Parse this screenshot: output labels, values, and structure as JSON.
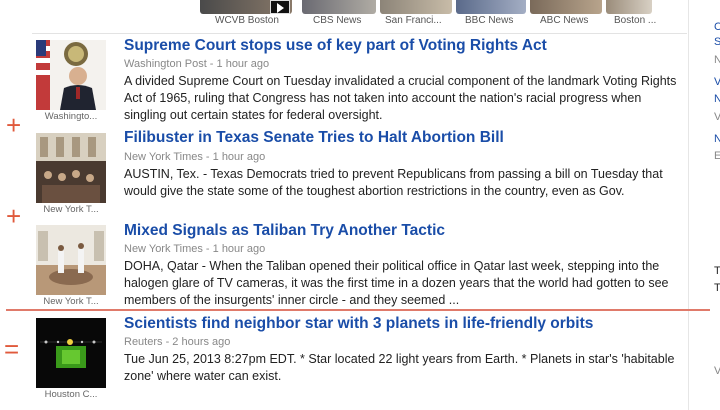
{
  "video_strip": {
    "items": [
      {
        "label": "WCVB Boston"
      },
      {
        "label": "CBS News"
      },
      {
        "label": "San Franci..."
      },
      {
        "label": "BBC News"
      },
      {
        "label": "ABC News"
      },
      {
        "label": "Boston ..."
      }
    ]
  },
  "stories": [
    {
      "headline": "Supreme Court stops use of key part of Voting Rights Act",
      "meta": "Washington Post - 1 hour ago",
      "snippet": "A divided Supreme Court on Tuesday invalidated a crucial component of the landmark Voting Rights Act of 1965, ruling that Congress has not taken into account the nation's racial progress when singling out certain states for federal oversight.",
      "thumb_caption": "Washingto..."
    },
    {
      "marker": "+",
      "headline": "Filibuster in Texas Senate Tries to Halt Abortion Bill",
      "meta": "New York Times - 1 hour ago",
      "snippet": "AUSTIN, Tex. - Texas Democrats tried to prevent Republicans from passing a bill on Tuesday that would give the state some of the toughest abortion restrictions in the country, even as Gov.",
      "thumb_caption": "New York T..."
    },
    {
      "marker": "+",
      "headline": "Mixed Signals as Taliban Try Another Tactic",
      "meta": "New York Times - 1 hour ago",
      "snippet": "DOHA, Qatar - When the Taliban opened their political office in Qatar last week, stepping into the halogen glare of TV cameras, it was the first time in a dozen years that the world had gotten to see members of the insurgents' inner circle - and they seemed ...",
      "thumb_caption": "New York T..."
    },
    {
      "marker": "=",
      "headline": "Scientists find neighbor star with 3 planets in life-friendly orbits",
      "meta": "Reuters - 2 hours ago",
      "snippet": "Tue Jun 25, 2013 8:27pm EDT. * Star located 22 light years from Earth. * Planets in star's 'habitable zone' where water can exist.",
      "thumb_caption": "Houston C..."
    }
  ],
  "sidebar_slivers": [
    "C",
    "S",
    "N",
    "V",
    "N",
    "V",
    "N",
    "E",
    "T",
    "T",
    "V"
  ],
  "colors": {
    "headline": "#1a4da8",
    "marker": "#e05a3c",
    "divider": "#e07a6a",
    "meta": "#888888"
  }
}
